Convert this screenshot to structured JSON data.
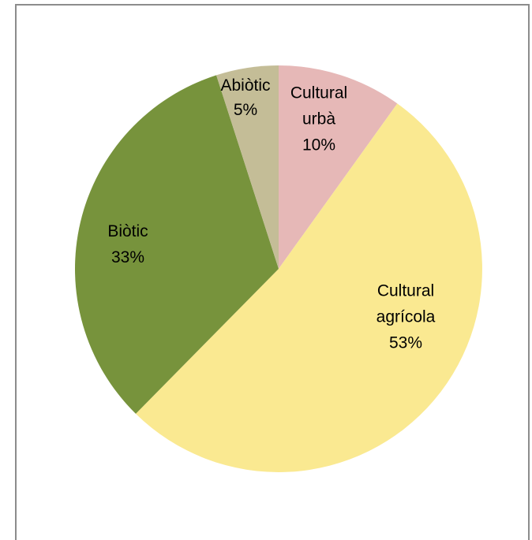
{
  "chart_data": {
    "type": "pie",
    "title": "",
    "start_angle_deg": 0,
    "direction": "clockwise",
    "slices": [
      {
        "name": "Cultural urbà",
        "label_lines": [
          "Cultural",
          "urbà"
        ],
        "percent_label": "10%",
        "value": 10,
        "color": "#e6b8b7"
      },
      {
        "name": "Cultural agrícola",
        "label_lines": [
          "Cultural",
          "agrícola"
        ],
        "percent_label": "53%",
        "value": 53,
        "color": "#fae991"
      },
      {
        "name": "Biòtic",
        "label_lines": [
          "Biòtic"
        ],
        "percent_label": "33%",
        "value": 33,
        "color": "#77933c"
      },
      {
        "name": "Abiòtic",
        "label_lines": [
          "Abiòtic"
        ],
        "percent_label": "5%",
        "value": 5,
        "color": "#c4bd97"
      }
    ]
  }
}
